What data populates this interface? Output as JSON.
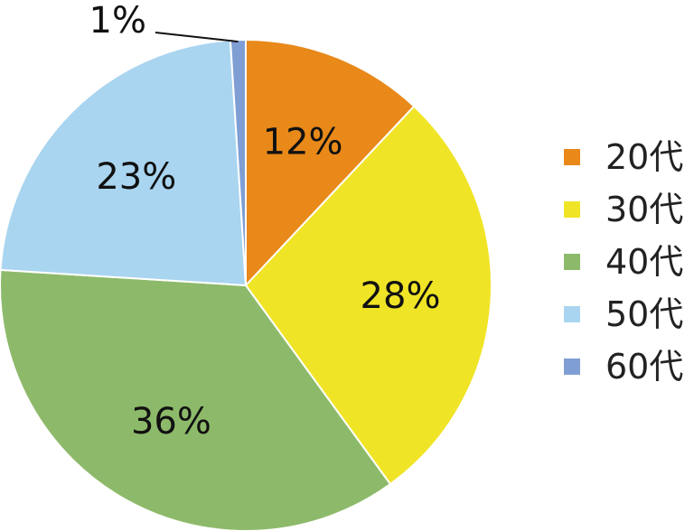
{
  "chart_data": {
    "type": "pie",
    "categories": [
      "20代",
      "30代",
      "40代",
      "50代",
      "60代"
    ],
    "values": [
      12,
      28,
      36,
      23,
      1
    ],
    "data_labels": [
      "12%",
      "28%",
      "36%",
      "23%",
      "1%"
    ],
    "colors": [
      "#E8891A",
      "#F0E426",
      "#8DBA6A",
      "#A9D5F0",
      "#7F9ED4"
    ],
    "start_angle_deg": 0,
    "direction": "clockwise",
    "legend_position": "right",
    "title": ""
  }
}
